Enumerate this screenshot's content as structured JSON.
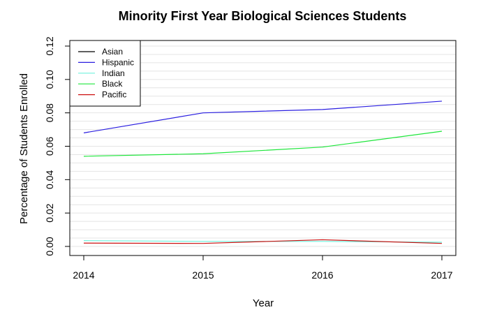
{
  "chart_data": {
    "type": "line",
    "title": "Minority First Year Biological Sciences Students",
    "xlabel": "Year",
    "ylabel": "Percentage of Students Enrolled",
    "x": [
      2014,
      2015,
      2016,
      2017
    ],
    "xlim": [
      2014,
      2017
    ],
    "ylim": [
      0,
      0.12
    ],
    "x_ticks": [
      "2014",
      "2015",
      "2016",
      "2017"
    ],
    "y_ticks": [
      "0.00",
      "0.02",
      "0.04",
      "0.06",
      "0.08",
      "0.10",
      "0.12"
    ],
    "y_tick_values": [
      0,
      0.02,
      0.04,
      0.06,
      0.08,
      0.1,
      0.12
    ],
    "grid": "horizontal",
    "legend_position": "top-left",
    "series": [
      {
        "name": "Asian",
        "color": "#000000",
        "values": [
          null,
          null,
          null,
          null
        ]
      },
      {
        "name": "Hispanic",
        "color": "#2a1ee0",
        "values": [
          0.068,
          0.08,
          0.082,
          0.087
        ]
      },
      {
        "name": "Indian",
        "color": "#6ff2dd",
        "values": [
          0.0035,
          0.003,
          0.003,
          0.0025
        ]
      },
      {
        "name": "Black",
        "color": "#1ee63b",
        "values": [
          0.054,
          0.0555,
          0.0595,
          0.069
        ]
      },
      {
        "name": "Pacific",
        "color": "#cc1010",
        "values": [
          0.002,
          0.0018,
          0.004,
          0.0018
        ]
      }
    ]
  }
}
